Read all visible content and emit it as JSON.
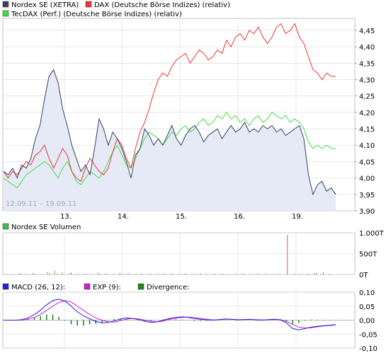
{
  "chart_data": [
    {
      "type": "line",
      "legend": [
        {
          "name": "Nordex SE (XETRA)",
          "color": "#34425e"
        },
        {
          "name": "DAX (Deutsche Börse Indizes) (relativ)",
          "color": "#ee3333"
        },
        {
          "name": "TecDAX (Perf.) (Deutsche Börse Indizes) (relativ)",
          "color": "#44dd44"
        }
      ],
      "date_range_label": "12.09.11 – 19.09.11",
      "x_tick_labels": [
        "13.",
        "14.",
        "15.",
        "16.",
        "19."
      ],
      "y_tick_labels": [
        "4,45",
        "4,40",
        "4,35",
        "4,30",
        "4,25",
        "4,20",
        "4,15",
        "4,10",
        "4,05",
        "4,00",
        "3,95",
        "3,90"
      ],
      "ylim": [
        3.9,
        4.48
      ],
      "grid": true,
      "series": [
        {
          "name": "Nordex SE (XETRA)",
          "color": "#34425e",
          "values": [
            4.02,
            4.01,
            4.03,
            4.0,
            4.04,
            4.03,
            4.06,
            4.12,
            4.16,
            4.24,
            4.31,
            4.33,
            4.29,
            4.21,
            4.16,
            4.1,
            4.06,
            4.02,
            4.04,
            4.01,
            4.09,
            4.18,
            4.15,
            4.1,
            4.14,
            4.12,
            4.09,
            4.05,
            4.0,
            4.07,
            4.09,
            4.15,
            4.13,
            4.1,
            4.12,
            4.1,
            4.13,
            4.16,
            4.12,
            4.1,
            4.13,
            4.15,
            4.16,
            4.14,
            4.11,
            4.13,
            4.14,
            4.15,
            4.12,
            4.14,
            4.16,
            4.14,
            4.15,
            4.17,
            4.14,
            4.15,
            4.14,
            4.16,
            4.15,
            4.16,
            4.14,
            4.15,
            4.13,
            4.14,
            4.15,
            4.16,
            4.12,
            4.01,
            3.95,
            3.98,
            3.99,
            3.96,
            3.97,
            3.95
          ]
        },
        {
          "name": "DAX (relativ)",
          "color": "#ee3333",
          "values": [
            4.02,
            4.0,
            4.02,
            4.01,
            4.03,
            4.05,
            4.04,
            4.07,
            4.08,
            4.1,
            4.06,
            4.03,
            4.06,
            4.09,
            4.07,
            4.02,
            4.0,
            3.99,
            4.03,
            4.06,
            4.04,
            4.02,
            4.01,
            4.03,
            4.08,
            4.12,
            4.1,
            4.06,
            4.03,
            4.09,
            4.14,
            4.17,
            4.21,
            4.26,
            4.3,
            4.32,
            4.31,
            4.34,
            4.36,
            4.37,
            4.38,
            4.35,
            4.37,
            4.39,
            4.38,
            4.36,
            4.37,
            4.39,
            4.38,
            4.42,
            4.4,
            4.43,
            4.44,
            4.42,
            4.45,
            4.44,
            4.46,
            4.43,
            4.41,
            4.43,
            4.46,
            4.47,
            4.44,
            4.45,
            4.47,
            4.43,
            4.41,
            4.37,
            4.33,
            4.32,
            4.3,
            4.32,
            4.31,
            4.31
          ]
        },
        {
          "name": "TecDAX (relativ)",
          "color": "#44dd44",
          "values": [
            4.0,
            3.99,
            3.98,
            3.97,
            3.99,
            4.01,
            4.02,
            4.03,
            4.04,
            4.05,
            4.04,
            4.02,
            4.0,
            4.03,
            4.05,
            4.02,
            3.99,
            3.98,
            4.0,
            4.02,
            4.01,
            4.0,
            4.02,
            4.05,
            4.08,
            4.1,
            4.07,
            4.04,
            4.03,
            4.06,
            4.09,
            4.12,
            4.14,
            4.13,
            4.12,
            4.1,
            4.12,
            4.14,
            4.13,
            4.15,
            4.16,
            4.14,
            4.15,
            4.17,
            4.18,
            4.16,
            4.17,
            4.19,
            4.18,
            4.2,
            4.18,
            4.19,
            4.17,
            4.18,
            4.16,
            4.18,
            4.19,
            4.17,
            4.18,
            4.2,
            4.19,
            4.18,
            4.19,
            4.17,
            4.18,
            4.17,
            4.15,
            4.11,
            4.09,
            4.1,
            4.09,
            4.1,
            4.09,
            4.09
          ]
        }
      ]
    },
    {
      "type": "bar",
      "legend": [
        {
          "name": "Nordex SE Volumen",
          "color": "#44bb44"
        }
      ],
      "y_tick_labels": [
        "1.000T",
        "500T",
        "0T"
      ],
      "ylim": [
        0,
        1000
      ],
      "grid": true,
      "series": [
        {
          "name": "Nordex SE Volumen",
          "values_green": [
            12,
            8,
            25,
            15,
            40,
            10,
            60,
            90,
            55,
            30,
            20,
            15,
            10,
            45,
            25,
            12,
            35,
            20,
            15,
            30,
            18,
            10,
            22,
            14,
            8,
            26,
            12,
            9,
            16,
            20,
            11,
            14,
            8,
            18,
            10,
            12,
            9,
            15,
            20,
            10,
            8,
            12,
            14,
            30,
            15,
            10
          ],
          "values_red": [
            15,
            10,
            30,
            12,
            20,
            8,
            35,
            25,
            15,
            45,
            10,
            20,
            15,
            25,
            18,
            12,
            28,
            30,
            16,
            10,
            24,
            14,
            18,
            30,
            12,
            20,
            15,
            28,
            10,
            18,
            22,
            12,
            14,
            20,
            16,
            18,
            25,
            12,
            14,
            950,
            22,
            10,
            16,
            45,
            55,
            12
          ]
        }
      ]
    },
    {
      "type": "line",
      "legend": [
        {
          "name": "MACD (26, 12):",
          "color": "#2222dd"
        },
        {
          "name": "EXP (9):",
          "color": "#cc22cc"
        },
        {
          "name": "Divergence:",
          "color": "#228822"
        }
      ],
      "y_tick_labels": [
        "0,10",
        "0,05",
        "0,00",
        "-0,05",
        "-0,10"
      ],
      "ylim": [
        -0.1,
        0.1
      ],
      "grid": true,
      "series": [
        {
          "name": "MACD",
          "color": "#2222dd",
          "values": [
            0.0,
            0.0,
            0.0,
            0.002,
            0.008,
            0.02,
            0.035,
            0.055,
            0.07,
            0.075,
            0.068,
            0.05,
            0.03,
            0.015,
            0.005,
            -0.005,
            -0.01,
            -0.008,
            -0.003,
            0.004,
            0.008,
            0.006,
            0.002,
            -0.004,
            -0.008,
            -0.006,
            0.0,
            0.006,
            0.01,
            0.012,
            0.01,
            0.006,
            0.003,
            0.001,
            0.0,
            0.002,
            0.004,
            0.003,
            0.001,
            0.002,
            0.003,
            0.001,
            0.0,
            0.002,
            0.003,
            0.001,
            -0.01,
            -0.03,
            -0.035,
            -0.03,
            -0.025,
            -0.022,
            -0.02,
            -0.018,
            -0.016
          ]
        },
        {
          "name": "EXP",
          "color": "#cc22cc",
          "values": [
            0.0,
            0.0,
            0.0,
            0.0,
            0.003,
            0.01,
            0.02,
            0.035,
            0.05,
            0.063,
            0.07,
            0.065,
            0.05,
            0.035,
            0.02,
            0.008,
            0.0,
            -0.006,
            -0.007,
            -0.002,
            0.004,
            0.006,
            0.004,
            0.0,
            -0.004,
            -0.006,
            -0.003,
            0.003,
            0.007,
            0.01,
            0.011,
            0.009,
            0.006,
            0.003,
            0.001,
            0.001,
            0.003,
            0.003,
            0.002,
            0.002,
            0.002,
            0.002,
            0.001,
            0.001,
            0.002,
            0.002,
            -0.004,
            -0.015,
            -0.025,
            -0.028,
            -0.027,
            -0.024,
            -0.021,
            -0.019,
            -0.017
          ]
        }
      ]
    }
  ]
}
